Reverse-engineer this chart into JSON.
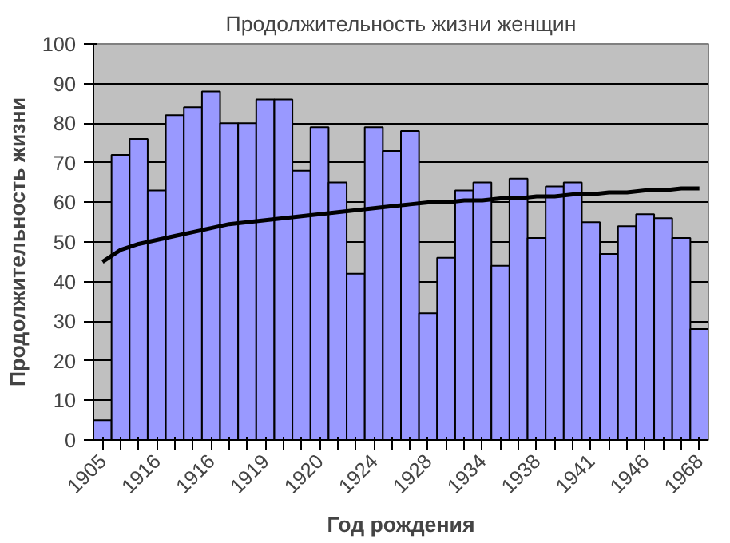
{
  "chart_data": {
    "type": "bar",
    "title": "Продолжительность жизни женщин",
    "xlabel": "Год рождения",
    "ylabel": "Продолжительность жизни",
    "categories": [
      "1905",
      null,
      null,
      "1916",
      null,
      null,
      "1916",
      null,
      null,
      "1919",
      null,
      null,
      "1920",
      null,
      null,
      "1924",
      null,
      null,
      "1928",
      null,
      null,
      "1934",
      null,
      null,
      "1938",
      null,
      null,
      "1941",
      null,
      null,
      "1946",
      null,
      null,
      "1968"
    ],
    "series": [
      {
        "color": "#9999ff",
        "values": [
          5,
          72,
          76,
          63,
          82,
          84,
          88,
          80,
          80,
          86,
          86,
          68,
          79,
          65,
          42,
          79,
          73,
          78,
          32,
          46,
          63,
          65,
          44,
          66,
          51,
          64,
          65,
          55,
          47,
          54,
          57,
          56,
          51,
          28
        ]
      },
      {
        "type": "line",
        "color": "#000000",
        "values": [
          45,
          48,
          49.5,
          50.5,
          51.5,
          52.5,
          53.5,
          54.5,
          55,
          55.5,
          56,
          56.5,
          57,
          57.5,
          58,
          58.5,
          59,
          59.5,
          60,
          60,
          60.5,
          60.5,
          61,
          61,
          61.5,
          61.5,
          62,
          62,
          62.5,
          62.5,
          63,
          63,
          63.5,
          63.5
        ]
      }
    ],
    "ylim": [
      0,
      100
    ],
    "yticks": [
      0,
      10,
      20,
      30,
      40,
      50,
      60,
      70,
      80,
      90,
      100
    ],
    "grid": "y"
  }
}
